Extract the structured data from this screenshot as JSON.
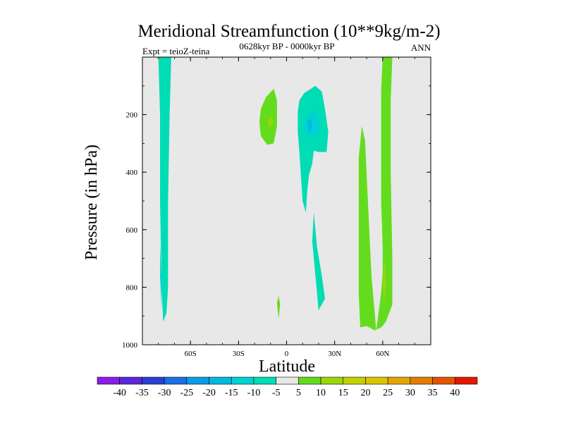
{
  "chart_data": {
    "type": "contour",
    "title": "Meridional Streamfunction (10**9kg/m-2)",
    "subtitle": "0628kyr BP - 0000kyr BP",
    "left_annotation": "Expt = teioZ-teina",
    "right_annotation": "ANN",
    "xlabel": "Latitude",
    "ylabel": "Pressure (in hPa)",
    "xlim": [
      -90,
      90
    ],
    "ylim": [
      1000,
      0
    ],
    "x_ticks": [
      {
        "value": -60,
        "label": "60S"
      },
      {
        "value": -30,
        "label": "30S"
      },
      {
        "value": 0,
        "label": "0"
      },
      {
        "value": 30,
        "label": "30N"
      },
      {
        "value": 60,
        "label": "60N"
      }
    ],
    "y_ticks": [
      {
        "value": 200,
        "label": "200"
      },
      {
        "value": 400,
        "label": "400"
      },
      {
        "value": 600,
        "label": "600"
      },
      {
        "value": 800,
        "label": "800"
      },
      {
        "value": 1000,
        "label": "1000"
      }
    ],
    "colorbar": {
      "levels": [
        "-40",
        "-35",
        "-30",
        "-25",
        "-20",
        "-15",
        "-10",
        "-5",
        "5",
        "10",
        "15",
        "20",
        "25",
        "30",
        "35",
        "40"
      ],
      "colors": [
        "#8a1ee6",
        "#5a28d8",
        "#2a40d2",
        "#1a6ee6",
        "#0c9ce6",
        "#00b8e0",
        "#00d2d2",
        "#00dcb4",
        "#e8e8e8",
        "#64dc1e",
        "#9ad60a",
        "#c2d200",
        "#dcc400",
        "#e2a600",
        "#e47e00",
        "#e25400",
        "#e21800"
      ]
    },
    "background_color": "#e8e8e8",
    "regions": [
      {
        "name": "southern-polar-negative-cell",
        "value": "-10",
        "points": [
          [
            -80,
            0
          ],
          [
            -72,
            0
          ],
          [
            -73,
            200
          ],
          [
            -74,
            500
          ],
          [
            -74,
            800
          ],
          [
            -75,
            890
          ],
          [
            -77,
            920
          ],
          [
            -78,
            800
          ],
          [
            -79,
            500
          ],
          [
            -79,
            200
          ]
        ]
      },
      {
        "name": "southern-polar-negative-core",
        "value": "-15",
        "points": [
          [
            -79,
            650
          ],
          [
            -78,
            780
          ],
          [
            -78,
            880
          ],
          [
            -79,
            760
          ]
        ]
      },
      {
        "name": "southern-subtropics-positive-cell",
        "value": "5",
        "points": [
          [
            -16,
            180
          ],
          [
            -13,
            140
          ],
          [
            -8,
            110
          ],
          [
            -6,
            150
          ],
          [
            -6,
            240
          ],
          [
            -8,
            300
          ],
          [
            -12,
            305
          ],
          [
            -16,
            275
          ],
          [
            -17,
            225
          ]
        ]
      },
      {
        "name": "southern-subtropics-positive-core",
        "value": "10",
        "points": [
          [
            -12,
            225
          ],
          [
            -10,
            205
          ],
          [
            -8,
            225
          ],
          [
            -10,
            245
          ]
        ]
      },
      {
        "name": "equatorial-negative-cell",
        "value": "-10",
        "points": [
          [
            8,
            150
          ],
          [
            11,
            125
          ],
          [
            18,
            100
          ],
          [
            22,
            120
          ],
          [
            24,
            180
          ],
          [
            26,
            260
          ],
          [
            25,
            330
          ],
          [
            20,
            330
          ],
          [
            17,
            325
          ],
          [
            16,
            370
          ],
          [
            14,
            410
          ],
          [
            13,
            460
          ],
          [
            12,
            540
          ],
          [
            10,
            500
          ],
          [
            9,
            420
          ],
          [
            8,
            330
          ],
          [
            7,
            260
          ],
          [
            7,
            190
          ]
        ]
      },
      {
        "name": "equatorial-negative-core",
        "value": "-15",
        "points": [
          [
            11,
            240
          ],
          [
            13,
            200
          ],
          [
            17,
            185
          ],
          [
            20,
            210
          ],
          [
            21,
            260
          ],
          [
            16,
            280
          ],
          [
            12,
            270
          ]
        ]
      },
      {
        "name": "equatorial-negative-center",
        "value": "-20",
        "points": [
          [
            13,
            220
          ],
          [
            15,
            215
          ],
          [
            16,
            245
          ],
          [
            14,
            265
          ]
        ]
      },
      {
        "name": "tropical-lower-negative-cell",
        "value": "-10",
        "points": [
          [
            17,
            540
          ],
          [
            19,
            660
          ],
          [
            22,
            760
          ],
          [
            24,
            840
          ],
          [
            20,
            880
          ],
          [
            18,
            760
          ],
          [
            16,
            640
          ]
        ]
      },
      {
        "name": "near-equator-small-positive",
        "value": "5",
        "points": [
          [
            -6,
            855
          ],
          [
            -5,
            830
          ],
          [
            -4,
            860
          ],
          [
            -5,
            910
          ]
        ]
      },
      {
        "name": "northern-midlatitude-positive-cell",
        "value": "5",
        "points": [
          [
            45,
            350
          ],
          [
            47,
            240
          ],
          [
            49,
            290
          ],
          [
            51,
            530
          ],
          [
            53,
            760
          ],
          [
            56,
            950
          ],
          [
            59,
            820
          ],
          [
            60,
            750
          ],
          [
            60,
            660
          ],
          [
            59,
            500
          ],
          [
            59,
            300
          ],
          [
            59,
            120
          ],
          [
            60,
            0
          ],
          [
            66,
            0
          ],
          [
            65,
            150
          ],
          [
            65,
            400
          ],
          [
            66,
            700
          ],
          [
            66,
            860
          ],
          [
            62,
            920
          ],
          [
            59,
            940
          ],
          [
            55,
            950
          ],
          [
            50,
            935
          ],
          [
            46,
            940
          ],
          [
            45,
            820
          ],
          [
            45,
            560
          ]
        ]
      },
      {
        "name": "northern-positive-core",
        "value": "10",
        "points": [
          [
            61,
            700
          ],
          [
            62,
            780
          ],
          [
            61,
            860
          ],
          [
            60,
            780
          ]
        ]
      }
    ]
  }
}
